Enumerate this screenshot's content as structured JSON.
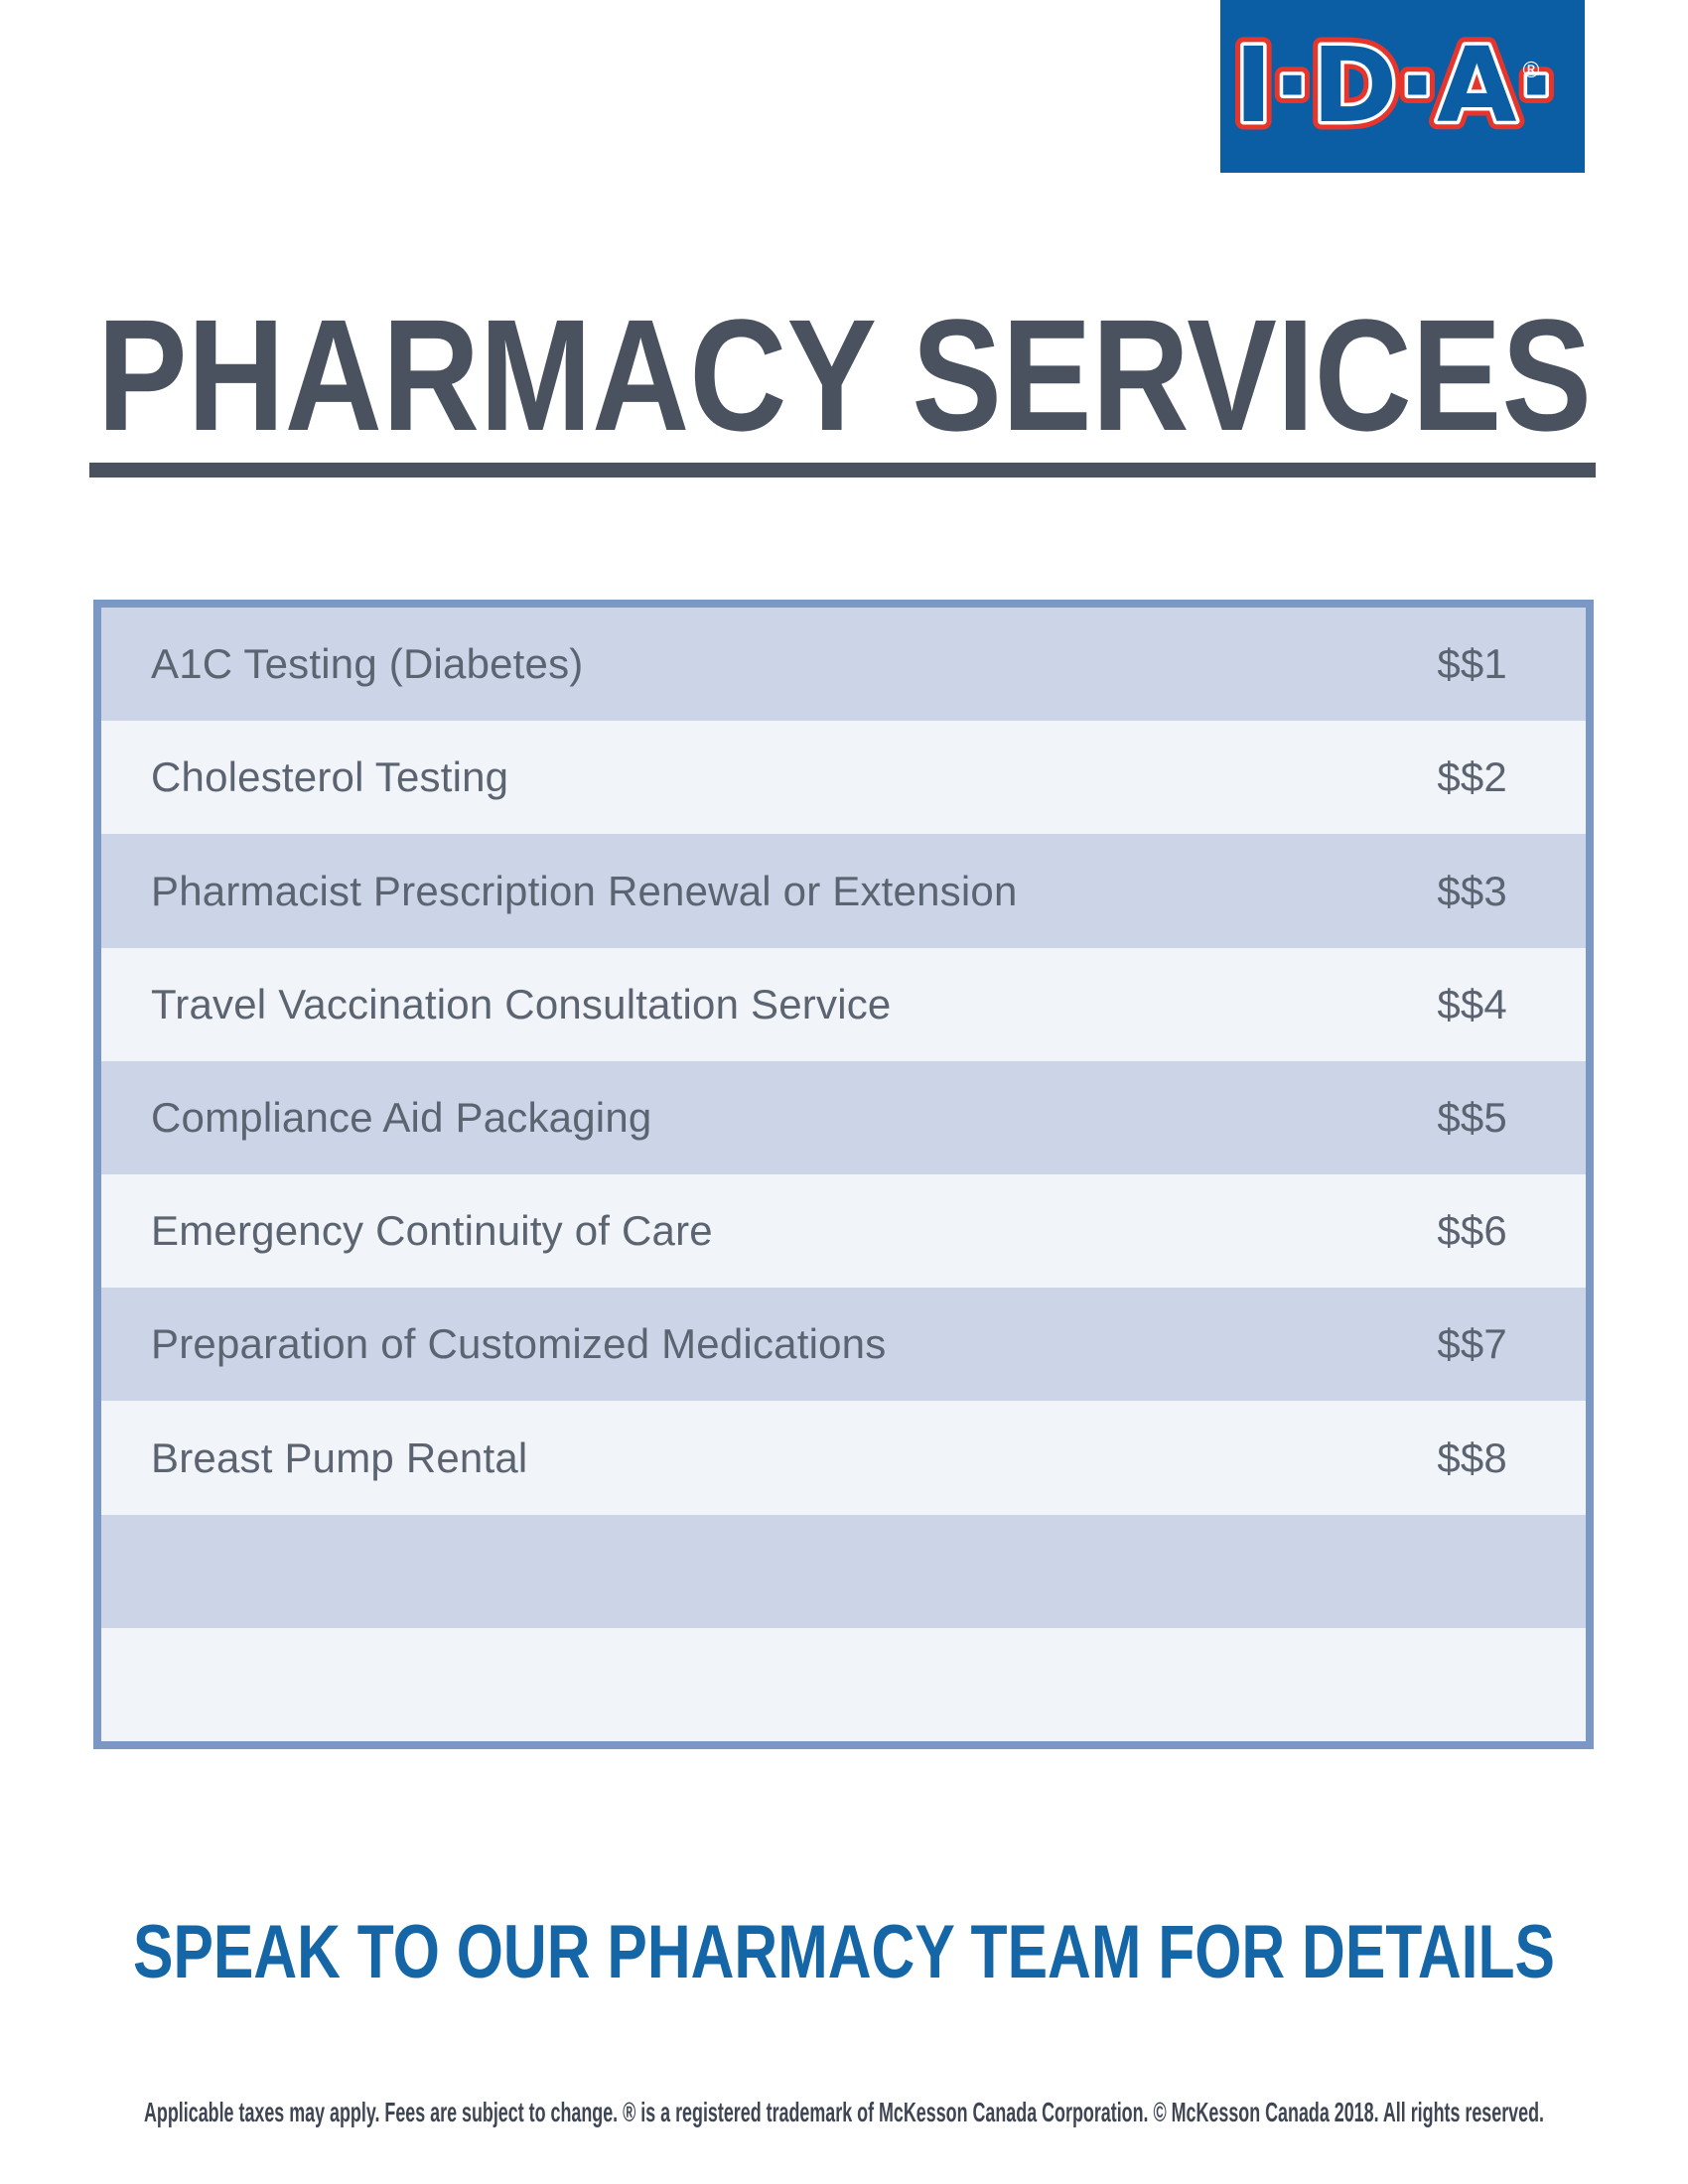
{
  "logo": {
    "text": "I·D·A·",
    "registered_mark": "®",
    "bg_color": "#0B5EA4",
    "outline_red": "#E8352C",
    "outline_white": "#FFFFFF"
  },
  "title": "PHARMACY SERVICES",
  "table": {
    "rows": [
      {
        "service": "A1C Testing (Diabetes)",
        "price": "$$1"
      },
      {
        "service": "Cholesterol Testing",
        "price": "$$2"
      },
      {
        "service": "Pharmacist Prescription Renewal or Extension",
        "price": "$$3"
      },
      {
        "service": "Travel Vaccination Consultation Service",
        "price": "$$4"
      },
      {
        "service": "Compliance Aid Packaging",
        "price": "$$5"
      },
      {
        "service": "Emergency Continuity of Care",
        "price": "$$6"
      },
      {
        "service": "Preparation of Customized Medications",
        "price": "$$7"
      },
      {
        "service": "Breast Pump Rental",
        "price": "$$8"
      },
      {
        "service": "",
        "price": ""
      },
      {
        "service": "",
        "price": ""
      }
    ]
  },
  "cta": "SPEAK TO OUR PHARMACY TEAM FOR DETAILS",
  "footer": "Applicable taxes may apply. Fees are subject to change. ® is a registered trademark of McKesson Canada Corporation. © McKesson Canada 2018. All rights reserved.",
  "colors": {
    "title_slate": "#4A5260",
    "table_border": "#7B97C3",
    "row_dark": "#CBD5E7",
    "row_light": "#F1F4F9",
    "row_text": "#5B6470",
    "cta_blue": "#1566A7",
    "footer_text": "#3F4653",
    "logo_blue": "#0B5EA4",
    "logo_red": "#E8352C"
  }
}
